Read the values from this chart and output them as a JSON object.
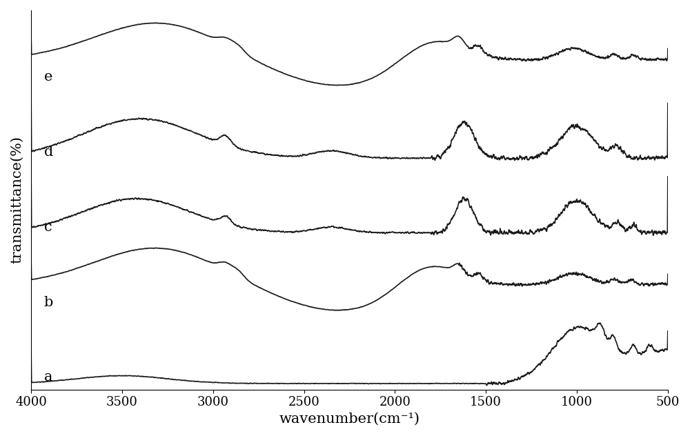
{
  "xlabel": "wavenumber(cm⁻¹)",
  "ylabel": "transmittance(%)",
  "xlim": [
    4000,
    500
  ],
  "x_ticks": [
    4000,
    3500,
    3000,
    2500,
    2000,
    1500,
    1000,
    500
  ],
  "labels": [
    "e",
    "d",
    "c",
    "b",
    "a"
  ],
  "background_color": "#ffffff",
  "line_color": "#1a1a1a",
  "label_fontsize": 15,
  "axis_fontsize": 15,
  "tick_fontsize": 13
}
